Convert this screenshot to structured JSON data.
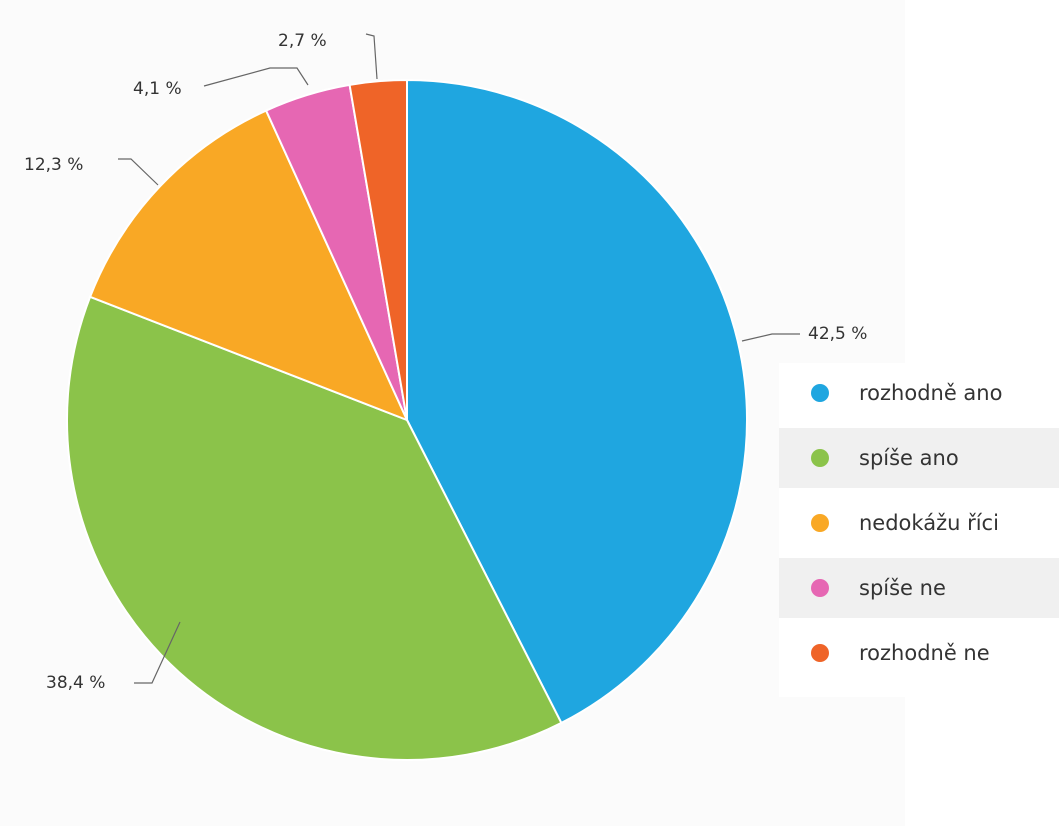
{
  "chart_data": {
    "type": "pie",
    "title": "",
    "categories": [
      "rozhodně ano",
      "spíše ano",
      "nedokážu říci",
      "spíše ne",
      "rozhodně ne"
    ],
    "values": [
      42.5,
      38.4,
      12.3,
      4.1,
      2.7
    ],
    "value_labels": [
      "42,5 %",
      "38,4 %",
      "12,3 %",
      "4,1 %",
      "2,7 %"
    ],
    "colors": [
      "#1fa6e0",
      "#8bc34a",
      "#f9a825",
      "#e667b3",
      "#ef6428"
    ],
    "unit": "%",
    "legend_position": "right"
  }
}
